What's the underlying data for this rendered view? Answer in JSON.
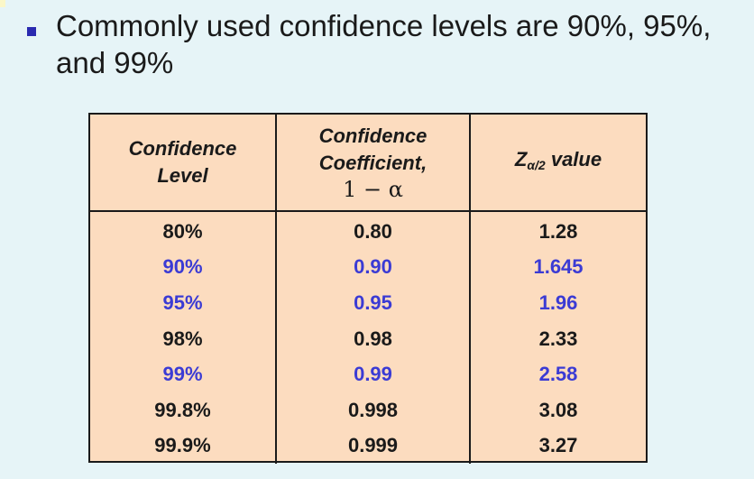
{
  "bullet": {
    "text": "Commonly used confidence levels are 90%, 95%, and 99%"
  },
  "table": {
    "headers": {
      "level_line1": "Confidence",
      "level_line2": "Level",
      "coef_line1": "Confidence",
      "coef_line2": "Coefficient,",
      "coef_formula": "1 − α",
      "z_main": "Z",
      "z_sub": "α/2",
      "z_suffix": " value"
    },
    "rows": [
      {
        "level": "80%",
        "coefficient": "0.80",
        "z": "1.28",
        "highlight": false
      },
      {
        "level": "90%",
        "coefficient": "0.90",
        "z": "1.645",
        "highlight": true
      },
      {
        "level": "95%",
        "coefficient": "0.95",
        "z": "1.96",
        "highlight": true
      },
      {
        "level": "98%",
        "coefficient": "0.98",
        "z": "2.33",
        "highlight": false
      },
      {
        "level": "99%",
        "coefficient": "0.99",
        "z": "2.58",
        "highlight": true
      },
      {
        "level": "99.8%",
        "coefficient": "0.998",
        "z": "3.08",
        "highlight": false
      },
      {
        "level": "99.9%",
        "coefficient": "0.999",
        "z": "3.27",
        "highlight": false
      }
    ],
    "colors": {
      "normal": "#1a1a1a",
      "highlight": "#3b3bd4"
    }
  }
}
